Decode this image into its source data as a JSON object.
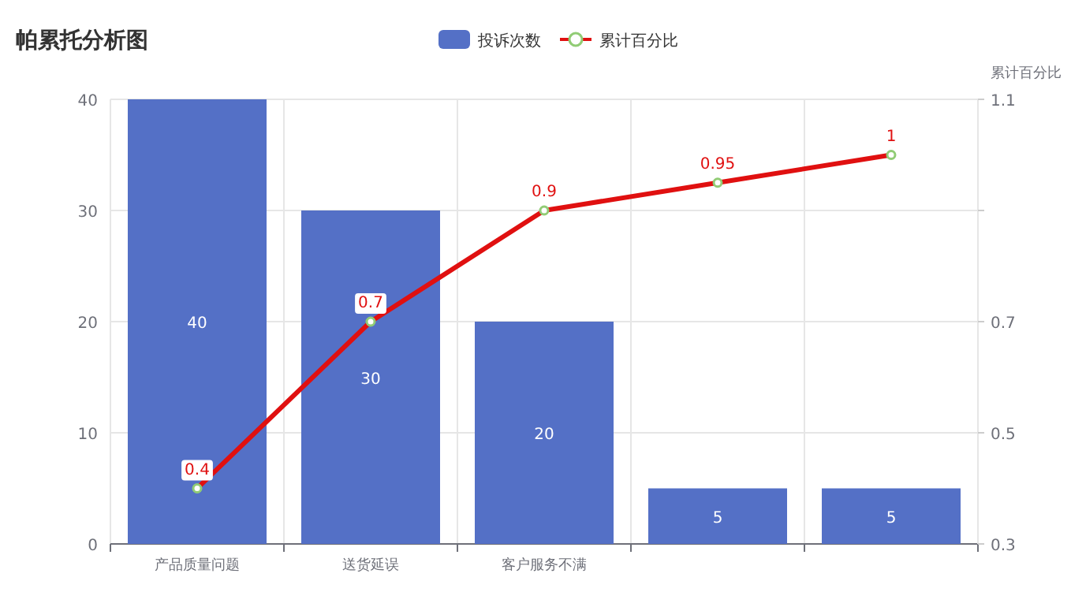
{
  "chart_data": {
    "type": "bar",
    "title": "帕累托分析图",
    "y2label": "累计百分比",
    "categories": [
      "产品质量问题",
      "送货延误",
      "客户服务不满",
      null,
      null
    ],
    "series": [
      {
        "name": "投诉次数",
        "color": "#5470c6",
        "values": [
          40,
          30,
          20,
          5,
          5
        ]
      },
      {
        "name": "累计百分比",
        "type": "line",
        "axis": "y2",
        "color": "#e01010",
        "values": [
          0.4,
          0.7,
          0.9,
          0.95,
          1
        ]
      }
    ],
    "ylim": [
      0,
      40
    ],
    "yticks": [
      0,
      10,
      20,
      30,
      40
    ],
    "y2lim": [
      0.3,
      1.1
    ],
    "y2ticks": [
      0.3,
      0.5,
      0.7,
      {
        "value": 0.9,
        "label": null
      },
      1.1
    ],
    "data_labels": true,
    "grid": true,
    "legend": "top",
    "marker": "circle"
  }
}
